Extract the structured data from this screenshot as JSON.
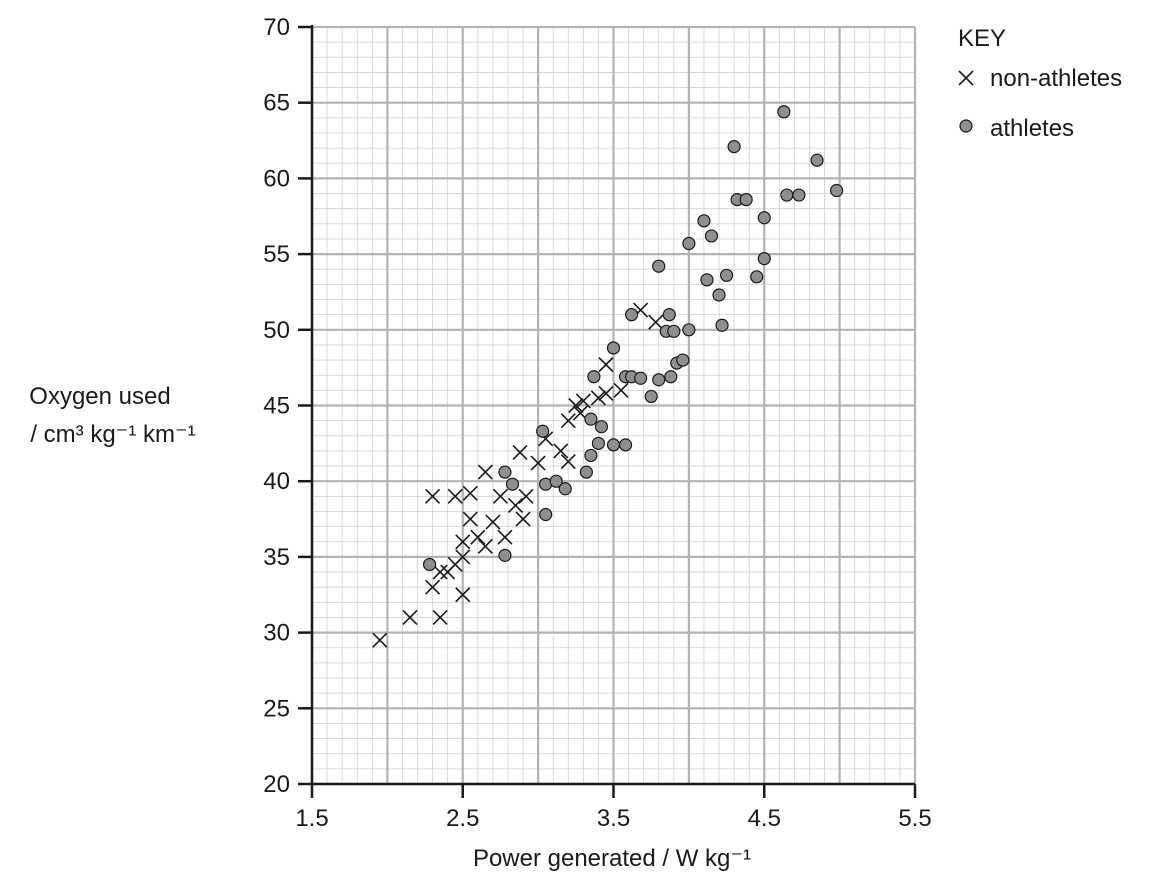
{
  "chart_data": {
    "type": "scatter",
    "xlabel": "Power generated / W kg⁻¹",
    "ylabel_line1": "Oxygen used",
    "ylabel_line2": "/ cm³ kg⁻¹ km⁻¹",
    "xlim": [
      1.5,
      5.5
    ],
    "ylim": [
      20,
      70
    ],
    "x_ticks": [
      1.5,
      2.5,
      3.5,
      4.5,
      5.5
    ],
    "x_tick_labels": [
      "1.5",
      "2.5",
      "3.5",
      "4.5",
      "5.5"
    ],
    "y_ticks": [
      20,
      25,
      30,
      35,
      40,
      45,
      50,
      55,
      60,
      65,
      70
    ],
    "y_tick_labels": [
      "20",
      "25",
      "30",
      "35",
      "40",
      "45",
      "50",
      "55",
      "60",
      "65",
      "70"
    ],
    "grid": true,
    "legend": {
      "title": "KEY",
      "position": "top-right",
      "entries": [
        "non-athletes",
        "athletes"
      ]
    },
    "series": [
      {
        "name": "non-athletes",
        "marker": "x",
        "points": [
          [
            1.95,
            29.5
          ],
          [
            2.15,
            31.0
          ],
          [
            2.3,
            33.0
          ],
          [
            2.35,
            31.0
          ],
          [
            2.3,
            39.0
          ],
          [
            2.35,
            34.0
          ],
          [
            2.4,
            34.0
          ],
          [
            2.45,
            34.5
          ],
          [
            2.45,
            39.0
          ],
          [
            2.5,
            35.0
          ],
          [
            2.5,
            36.0
          ],
          [
            2.5,
            32.5
          ],
          [
            2.55,
            39.2
          ],
          [
            2.55,
            37.5
          ],
          [
            2.6,
            36.3
          ],
          [
            2.65,
            35.7
          ],
          [
            2.65,
            40.6
          ],
          [
            2.7,
            37.3
          ],
          [
            2.75,
            39.0
          ],
          [
            2.78,
            36.3
          ],
          [
            2.85,
            38.4
          ],
          [
            2.88,
            41.9
          ],
          [
            2.9,
            37.5
          ],
          [
            2.92,
            39.0
          ],
          [
            3.0,
            41.2
          ],
          [
            3.05,
            42.8
          ],
          [
            3.15,
            42.0
          ],
          [
            3.2,
            44.0
          ],
          [
            3.2,
            41.3
          ],
          [
            3.25,
            45.0
          ],
          [
            3.28,
            44.5
          ],
          [
            3.3,
            45.3
          ],
          [
            3.4,
            45.5
          ],
          [
            3.45,
            45.8
          ],
          [
            3.45,
            47.7
          ],
          [
            3.55,
            46.0
          ],
          [
            3.68,
            51.3
          ],
          [
            3.78,
            50.5
          ]
        ]
      },
      {
        "name": "athletes",
        "marker": "circle",
        "points": [
          [
            2.28,
            34.5
          ],
          [
            2.78,
            40.6
          ],
          [
            2.78,
            35.1
          ],
          [
            2.83,
            39.8
          ],
          [
            3.03,
            43.3
          ],
          [
            3.05,
            39.8
          ],
          [
            3.05,
            37.8
          ],
          [
            3.12,
            40.0
          ],
          [
            3.18,
            39.5
          ],
          [
            3.32,
            40.6
          ],
          [
            3.35,
            41.7
          ],
          [
            3.35,
            44.1
          ],
          [
            3.37,
            46.9
          ],
          [
            3.4,
            42.5
          ],
          [
            3.42,
            43.6
          ],
          [
            3.5,
            42.4
          ],
          [
            3.5,
            48.8
          ],
          [
            3.58,
            46.9
          ],
          [
            3.58,
            42.4
          ],
          [
            3.62,
            51.0
          ],
          [
            3.62,
            46.9
          ],
          [
            3.68,
            46.8
          ],
          [
            3.75,
            45.6
          ],
          [
            3.8,
            46.7
          ],
          [
            3.8,
            54.2
          ],
          [
            3.85,
            49.9
          ],
          [
            3.87,
            51.0
          ],
          [
            3.88,
            46.9
          ],
          [
            3.9,
            49.9
          ],
          [
            3.92,
            47.8
          ],
          [
            3.96,
            48.0
          ],
          [
            4.0,
            50.0
          ],
          [
            4.0,
            55.7
          ],
          [
            4.1,
            57.2
          ],
          [
            4.12,
            53.3
          ],
          [
            4.15,
            56.2
          ],
          [
            4.2,
            52.3
          ],
          [
            4.22,
            50.3
          ],
          [
            4.25,
            53.6
          ],
          [
            4.3,
            62.1
          ],
          [
            4.32,
            58.6
          ],
          [
            4.38,
            58.6
          ],
          [
            4.45,
            53.5
          ],
          [
            4.5,
            54.7
          ],
          [
            4.5,
            57.4
          ],
          [
            4.63,
            64.4
          ],
          [
            4.65,
            58.9
          ],
          [
            4.73,
            58.9
          ],
          [
            4.85,
            61.2
          ],
          [
            4.98,
            59.2
          ]
        ]
      }
    ]
  }
}
